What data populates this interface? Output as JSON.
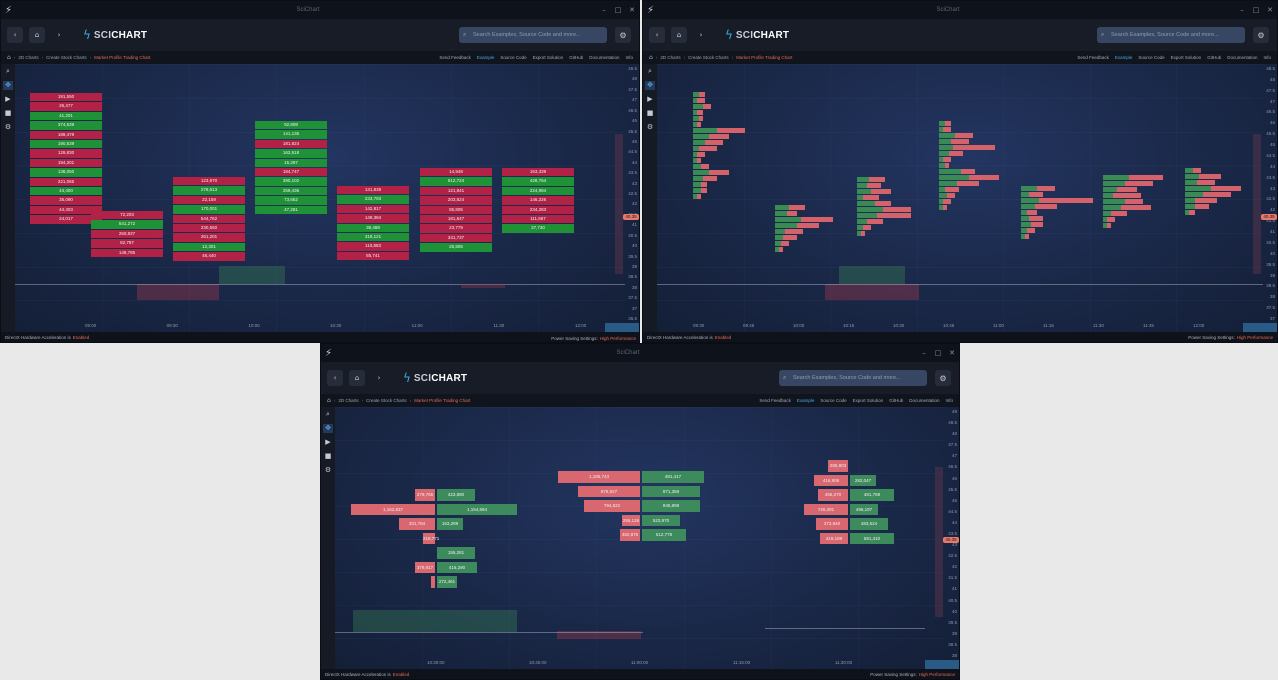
{
  "titlebar": {
    "app_icon": "lightning-icon",
    "title": "SciChart",
    "minimize": "–",
    "maximize": "□",
    "close": "✕"
  },
  "nav": {
    "back": "‹",
    "home": "⌂",
    "forward": "›",
    "logo_sci": "SCI",
    "logo_chart": "CHART",
    "search_placeholder": "Search Examples, Source Code and more...",
    "settings": "⚙"
  },
  "breadcrumb": {
    "items": [
      "2D Charts",
      "Create Stock Charts"
    ],
    "current": "Market Profile Trading Chart"
  },
  "actions": [
    "Send Feedback",
    "Example",
    "Source Code",
    "Export Solution",
    "GitHub",
    "Documentation",
    "Info"
  ],
  "status": {
    "hw_label": "DirectX Hardware Acceleration is",
    "hw_value": "Enabled",
    "power_label": "Power Saving Settings:",
    "power_value": "High Performance"
  },
  "colors": {
    "sell": "#b22146",
    "buy": "#1f9137",
    "sell_bar": "#d4626a",
    "buy_bar": "#3a8a56",
    "accent": "#38a7e2",
    "price_tag": "#e8796b"
  },
  "window1": {
    "chart_type": "market-profile-cells",
    "columns": [
      {
        "cells": [
          [
            "191,550",
            "r"
          ],
          [
            "26,477",
            "r"
          ],
          [
            "41,201",
            "g"
          ],
          [
            "374,539",
            "g"
          ],
          [
            "189,478",
            "r"
          ],
          [
            "190,539",
            "g"
          ],
          [
            "129,830",
            "r"
          ],
          [
            "194,201",
            "r"
          ],
          [
            "138,050",
            "g"
          ],
          [
            "221,065",
            "r"
          ],
          [
            "44,400",
            "g"
          ],
          [
            "35,090",
            "r"
          ],
          [
            "44,403",
            "r"
          ],
          [
            "24,017",
            "r"
          ]
        ]
      },
      {
        "cells": [
          [
            "72,203",
            "r"
          ],
          [
            "541,272",
            "g"
          ],
          [
            "250,837",
            "r"
          ],
          [
            "82,787",
            "r"
          ],
          [
            "148,785",
            "r"
          ]
        ]
      },
      {
        "cells": [
          [
            "123,970",
            "r"
          ],
          [
            "278,513",
            "g"
          ],
          [
            "22,159",
            "r"
          ],
          [
            "170,001",
            "g"
          ],
          [
            "544,762",
            "r"
          ],
          [
            "230,550",
            "r"
          ],
          [
            "261,201",
            "r"
          ],
          [
            "12,301",
            "g"
          ],
          [
            "48,440",
            "r"
          ]
        ]
      },
      {
        "cells": [
          [
            "92,808",
            "g"
          ],
          [
            "141,136",
            "g"
          ],
          [
            "181,824",
            "r"
          ],
          [
            "162,518",
            "g"
          ],
          [
            "15,287",
            "g"
          ],
          [
            "184,747",
            "r"
          ],
          [
            "390,102",
            "g"
          ],
          [
            "259,436",
            "g"
          ],
          [
            "73,662",
            "g"
          ],
          [
            "47,281",
            "g"
          ]
        ]
      },
      {
        "cells": [
          [
            "131,839",
            "r"
          ],
          [
            "233,793",
            "g"
          ],
          [
            "142,817",
            "r"
          ],
          [
            "149,384",
            "r"
          ],
          [
            "39,488",
            "g"
          ],
          [
            "318,121",
            "g"
          ],
          [
            "110,883",
            "r"
          ],
          [
            "85,741",
            "r"
          ]
        ]
      },
      {
        "cells": [
          [
            "14,948",
            "r"
          ],
          [
            "512,724",
            "g"
          ],
          [
            "121,841",
            "r"
          ],
          [
            "203,824",
            "r"
          ],
          [
            "85,805",
            "r"
          ],
          [
            "181,647",
            "r"
          ],
          [
            "23,779",
            "r"
          ],
          [
            "341,737",
            "r"
          ],
          [
            "25,805",
            "g"
          ]
        ]
      },
      {
        "cells": [
          [
            "153,339",
            "r"
          ],
          [
            "428,764",
            "g"
          ],
          [
            "224,994",
            "g"
          ],
          [
            "146,226",
            "r"
          ],
          [
            "234,283",
            "r"
          ],
          [
            "111,667",
            "r"
          ],
          [
            "37,730",
            "g"
          ]
        ]
      }
    ],
    "time_labels": [
      "09:00",
      "09:30",
      "10:00",
      "10:30",
      "11:00",
      "11:30",
      "12:00"
    ],
    "price_labels": [
      "46.5",
      "48",
      "47.5",
      "47",
      "46.5",
      "46",
      "45.5",
      "45",
      "44.5",
      "44",
      "43.5",
      "43",
      "42.5",
      "42",
      "41.5",
      "41",
      "40.5",
      "40",
      "39.5",
      "39",
      "38.5",
      "38",
      "37.5",
      "37",
      "36.5"
    ],
    "last_price": "40.35"
  },
  "window2": {
    "chart_type": "market-profile-bars",
    "time_labels": [
      "09:30",
      "09:45",
      "10:00",
      "10:15",
      "10:30",
      "10:45",
      "11:00",
      "11:15",
      "11:30",
      "11:45",
      "12:00"
    ],
    "price_labels": [
      "48.5",
      "48",
      "47.5",
      "47",
      "46.5",
      "46",
      "45.5",
      "45",
      "44.5",
      "44",
      "43.5",
      "43",
      "42.5",
      "42",
      "41.5",
      "41",
      "40.5",
      "40",
      "39.5",
      "39",
      "38.5",
      "38",
      "37.5",
      "37"
    ],
    "last_price": "40.35"
  },
  "window3": {
    "chart_type": "market-profile-volume-bars",
    "profiles": [
      {
        "rows": [
          [
            "279,765",
            "423,880"
          ],
          [
            "1,162,837",
            "1,154,694"
          ],
          [
            "331,784",
            "163,289"
          ],
          [
            "218,771",
            ""
          ],
          [
            "",
            "155,281"
          ],
          [
            "379,817",
            "416,290"
          ],
          [
            "",
            "272,461"
          ]
        ]
      },
      {
        "rows": [
          [
            "1,185,743",
            "481,417"
          ],
          [
            "878,927",
            "871,359"
          ],
          [
            "794,822",
            "845,898"
          ],
          [
            "255,126",
            "523,970"
          ],
          [
            "482,875",
            "512,778"
          ]
        ]
      },
      {
        "rows": [
          [
            "286,903",
            ""
          ],
          [
            "416,906",
            "282,047"
          ],
          [
            "456,270",
            "481,788"
          ],
          [
            "726,391",
            "496,197"
          ],
          [
            "373,940",
            "483,524"
          ],
          [
            "419,189",
            "581,410"
          ]
        ]
      }
    ],
    "time_labels": [
      "10:30:00",
      "10:45:00",
      "11:00:00",
      "11:15:00",
      "11:30:00"
    ],
    "price_labels": [
      "49",
      "48.5",
      "48",
      "47.5",
      "47",
      "46.5",
      "46",
      "45.5",
      "45",
      "44.5",
      "44",
      "43.5",
      "43",
      "42.5",
      "42",
      "41.5",
      "41",
      "40.5",
      "40",
      "39.5",
      "39",
      "38.5",
      "38"
    ],
    "last_price": "40.35"
  }
}
